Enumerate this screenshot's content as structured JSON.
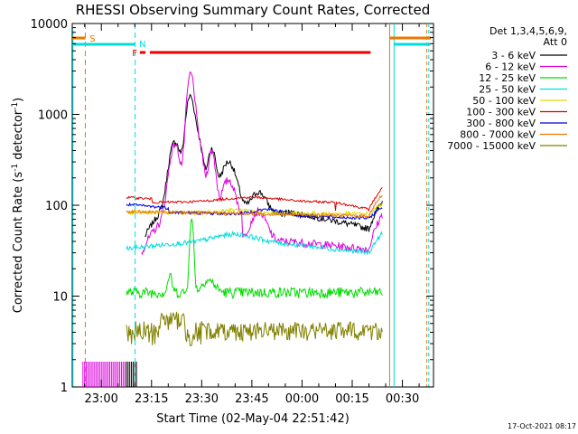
{
  "chart_data": {
    "type": "line",
    "title": "RHESSI Observing Summary Count Rates, Corrected",
    "xlabel": "Start Time (02-May-04 22:51:42)",
    "ylabel_main": "Corrected Count Rate (s",
    "ylabel_sup1": "-1",
    "ylabel_mid": " detector",
    "ylabel_sup2": "-1",
    "ylabel_end": ")",
    "y_scale": "log",
    "ylim": [
      1,
      10000
    ],
    "xlim_minutes": [
      -8.7,
      99.3
    ],
    "x_tick_labels": [
      "23:00",
      "23:15",
      "23:30",
      "23:45",
      "00:00",
      "00:15",
      "00:30"
    ],
    "y_tick_labels": [
      "1",
      "10",
      "100",
      "1000",
      "10000"
    ],
    "timestamp": "17-Oct-2021 08:17",
    "legend_header_1": "Det 1,3,4,5,6,9,",
    "legend_header_2": "Att 0",
    "markers": {
      "S": "S",
      "N": "N",
      "F": "F"
    },
    "series": [
      {
        "name": "3 - 6 keV",
        "color": "#000000"
      },
      {
        "name": "6 - 12 keV",
        "color": "#dd00dd"
      },
      {
        "name": "12 - 25 keV",
        "color": "#00dd00"
      },
      {
        "name": "25 - 50 keV",
        "color": "#00dddd"
      },
      {
        "name": "50 - 100 keV",
        "color": "#dddd00"
      },
      {
        "name": "100 - 300 keV",
        "color": "#dd0000"
      },
      {
        "name": "300 - 800 keV",
        "color": "#0000dd"
      },
      {
        "name": "800 - 7000 keV",
        "color": "#ee7700"
      },
      {
        "name": "7000 - 15000 keV",
        "color": "#808000"
      }
    ]
  }
}
